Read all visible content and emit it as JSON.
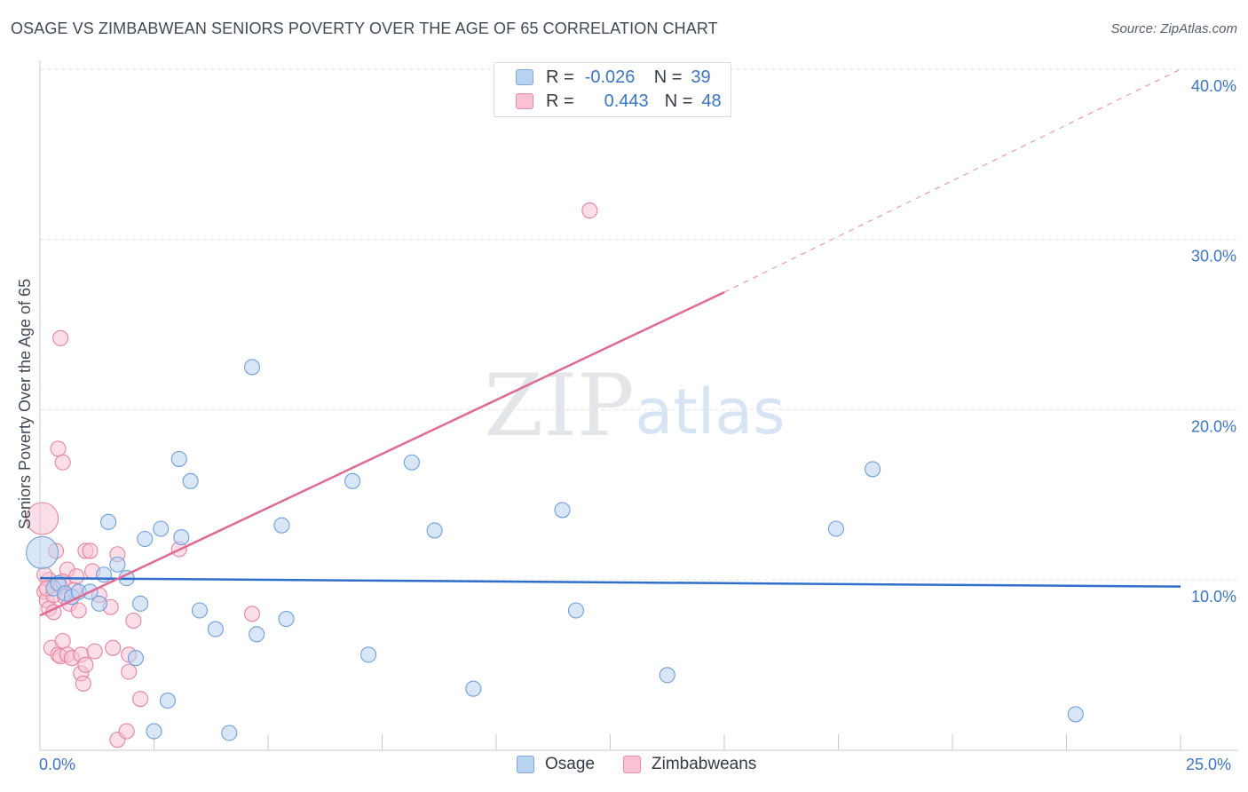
{
  "title": "OSAGE VS ZIMBABWEAN SENIORS POVERTY OVER THE AGE OF 65 CORRELATION CHART",
  "source": "Source: ZipAtlas.com",
  "watermark": {
    "zip": "ZIP",
    "atlas": "atlas"
  },
  "legend_top": {
    "r_label": "R =",
    "n_label": "N =",
    "rows": [
      {
        "r": "-0.026",
        "n": "39"
      },
      {
        "r": "0.443",
        "n": "48"
      }
    ]
  },
  "legend_bottom": [
    "Osage",
    "Zimbabweans"
  ],
  "x_tick_labels": {
    "left": "0.0%",
    "right": "25.0%"
  },
  "chart_data": {
    "type": "scatter",
    "title": "OSAGE VS ZIMBABWEAN SENIORS POVERTY OVER THE AGE OF 65 CORRELATION CHART",
    "xlabel": "",
    "ylabel": "Seniors Poverty Over the Age of 65",
    "xlim": [
      0,
      25
    ],
    "ylim": [
      0,
      42
    ],
    "y_ticks": [
      10,
      20,
      30,
      40
    ],
    "y_tick_labels": [
      "10.0%",
      "20.0%",
      "30.0%",
      "40.0%"
    ],
    "grid": true,
    "legend_position": "top-center",
    "colors": {
      "Osage": "#3a75c9",
      "Zimbabweans": "#e07098",
      "Osage_fill": "#b8d2f2",
      "Zimbabweans_fill": "#f8c2d4"
    },
    "series": [
      {
        "name": "Osage",
        "R": -0.026,
        "N": 39,
        "trend": {
          "x0": 0,
          "y0": 10.1,
          "x1": 25,
          "y1": 9.6
        },
        "points": [
          {
            "x": 0.05,
            "y": 11.6,
            "big": true
          },
          {
            "x": 0.3,
            "y": 9.5
          },
          {
            "x": 0.4,
            "y": 9.8
          },
          {
            "x": 0.55,
            "y": 9.2
          },
          {
            "x": 0.7,
            "y": 9.0
          },
          {
            "x": 0.85,
            "y": 9.3
          },
          {
            "x": 1.1,
            "y": 9.3
          },
          {
            "x": 1.3,
            "y": 8.6
          },
          {
            "x": 1.4,
            "y": 10.3
          },
          {
            "x": 1.5,
            "y": 13.4
          },
          {
            "x": 1.7,
            "y": 10.9
          },
          {
            "x": 1.9,
            "y": 10.1
          },
          {
            "x": 2.1,
            "y": 5.4
          },
          {
            "x": 2.2,
            "y": 8.6
          },
          {
            "x": 2.3,
            "y": 12.4
          },
          {
            "x": 2.5,
            "y": 1.1
          },
          {
            "x": 2.65,
            "y": 13.0
          },
          {
            "x": 2.8,
            "y": 2.9
          },
          {
            "x": 3.05,
            "y": 17.1
          },
          {
            "x": 3.1,
            "y": 12.5
          },
          {
            "x": 3.3,
            "y": 15.8
          },
          {
            "x": 3.5,
            "y": 8.2
          },
          {
            "x": 3.85,
            "y": 7.1
          },
          {
            "x": 4.15,
            "y": 1.0
          },
          {
            "x": 4.65,
            "y": 22.5
          },
          {
            "x": 4.75,
            "y": 6.8
          },
          {
            "x": 5.3,
            "y": 13.2
          },
          {
            "x": 5.4,
            "y": 7.7
          },
          {
            "x": 6.85,
            "y": 15.8
          },
          {
            "x": 7.2,
            "y": 5.6
          },
          {
            "x": 8.15,
            "y": 16.9
          },
          {
            "x": 8.65,
            "y": 12.9
          },
          {
            "x": 9.5,
            "y": 3.6
          },
          {
            "x": 11.45,
            "y": 14.1
          },
          {
            "x": 11.75,
            "y": 8.2
          },
          {
            "x": 13.75,
            "y": 4.4
          },
          {
            "x": 17.45,
            "y": 13.0
          },
          {
            "x": 18.25,
            "y": 16.5
          },
          {
            "x": 22.7,
            "y": 2.1
          }
        ]
      },
      {
        "name": "Zimbabweans",
        "R": 0.443,
        "N": 48,
        "trend": {
          "x0": 0,
          "y0": 7.9,
          "x1": 15,
          "y1": 26.9
        },
        "trend_extension": {
          "x0": 15,
          "y0": 26.9,
          "x1": 25,
          "y1": 40.0
        },
        "points": [
          {
            "x": 0.05,
            "y": 13.6,
            "big": true
          },
          {
            "x": 0.1,
            "y": 9.3
          },
          {
            "x": 0.15,
            "y": 8.8
          },
          {
            "x": 0.2,
            "y": 8.3
          },
          {
            "x": 0.2,
            "y": 10.0
          },
          {
            "x": 0.25,
            "y": 6.0
          },
          {
            "x": 0.3,
            "y": 9.1
          },
          {
            "x": 0.35,
            "y": 11.7
          },
          {
            "x": 0.4,
            "y": 5.6
          },
          {
            "x": 0.45,
            "y": 9.6
          },
          {
            "x": 0.45,
            "y": 5.5
          },
          {
            "x": 0.4,
            "y": 17.7
          },
          {
            "x": 0.45,
            "y": 24.2
          },
          {
            "x": 0.5,
            "y": 16.9
          },
          {
            "x": 0.5,
            "y": 6.4
          },
          {
            "x": 0.55,
            "y": 9.0
          },
          {
            "x": 0.6,
            "y": 10.6
          },
          {
            "x": 0.6,
            "y": 5.6
          },
          {
            "x": 0.65,
            "y": 8.6
          },
          {
            "x": 0.7,
            "y": 5.4
          },
          {
            "x": 0.8,
            "y": 10.2
          },
          {
            "x": 0.85,
            "y": 8.2
          },
          {
            "x": 0.9,
            "y": 5.6
          },
          {
            "x": 0.9,
            "y": 4.5
          },
          {
            "x": 0.95,
            "y": 3.9
          },
          {
            "x": 1.0,
            "y": 11.7
          },
          {
            "x": 1.0,
            "y": 5.0
          },
          {
            "x": 1.1,
            "y": 11.7
          },
          {
            "x": 1.15,
            "y": 10.5
          },
          {
            "x": 1.2,
            "y": 5.8
          },
          {
            "x": 1.3,
            "y": 9.1
          },
          {
            "x": 1.55,
            "y": 8.4
          },
          {
            "x": 1.6,
            "y": 6.0
          },
          {
            "x": 1.7,
            "y": 11.5
          },
          {
            "x": 1.7,
            "y": 0.6
          },
          {
            "x": 1.9,
            "y": 1.1
          },
          {
            "x": 1.95,
            "y": 5.6
          },
          {
            "x": 1.95,
            "y": 4.6
          },
          {
            "x": 2.05,
            "y": 7.6
          },
          {
            "x": 2.2,
            "y": 3.0
          },
          {
            "x": 3.05,
            "y": 11.8
          },
          {
            "x": 4.65,
            "y": 8.0
          },
          {
            "x": 12.05,
            "y": 31.7
          },
          {
            "x": 0.1,
            "y": 10.3
          },
          {
            "x": 0.15,
            "y": 9.5
          },
          {
            "x": 0.3,
            "y": 8.1
          },
          {
            "x": 0.5,
            "y": 9.9
          },
          {
            "x": 0.75,
            "y": 9.4
          }
        ]
      }
    ]
  }
}
